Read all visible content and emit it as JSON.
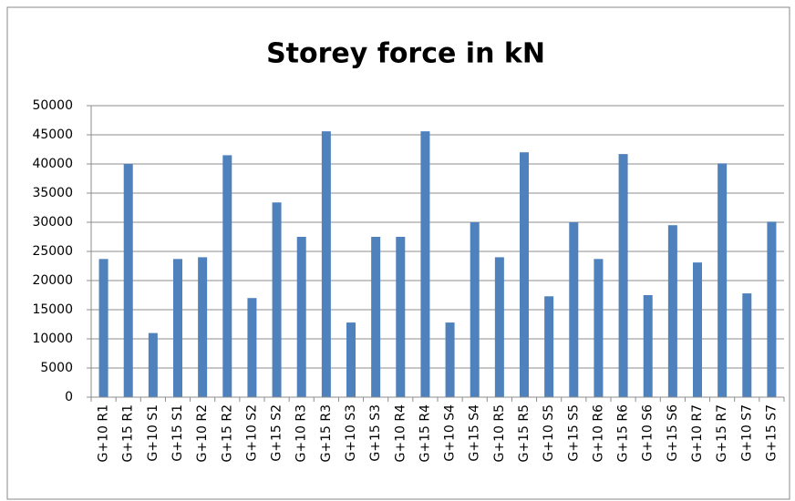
{
  "chart_data": {
    "type": "bar",
    "title": "Storey force in kN",
    "categories": [
      "G+10 R1",
      "G+15 R1",
      "G+10 S1",
      "G+15 S1",
      "G+10 R2",
      "G+15 R2",
      "G+10 S2",
      "G+15 S2",
      "G+10 R3",
      "G+15 R3",
      "G+10 S3",
      "G+15 S3",
      "G+10 R4",
      "G+15 R4",
      "G+10 S4",
      "G+15 S4",
      "G+10 R5",
      "G+15 R5",
      "G+10 S5",
      "G+15 S5",
      "G+10 R6",
      "G+15 R6",
      "G+10 S6",
      "G+15 S6",
      "G+10 R7",
      "G+15 R7",
      "G+10 S7",
      "G+15 S7"
    ],
    "values": [
      23700,
      40000,
      11000,
      23700,
      24000,
      41500,
      17000,
      33400,
      27500,
      45600,
      12800,
      27500,
      27500,
      45600,
      12800,
      30000,
      24000,
      42000,
      17300,
      30000,
      23700,
      41700,
      17500,
      29500,
      23100,
      40100,
      17800,
      30100
    ],
    "color": "#4f81bd",
    "ylim": [
      0,
      50000
    ],
    "yticks": [
      0,
      5000,
      10000,
      15000,
      20000,
      25000,
      30000,
      35000,
      40000,
      45000,
      50000
    ],
    "grid": true
  }
}
